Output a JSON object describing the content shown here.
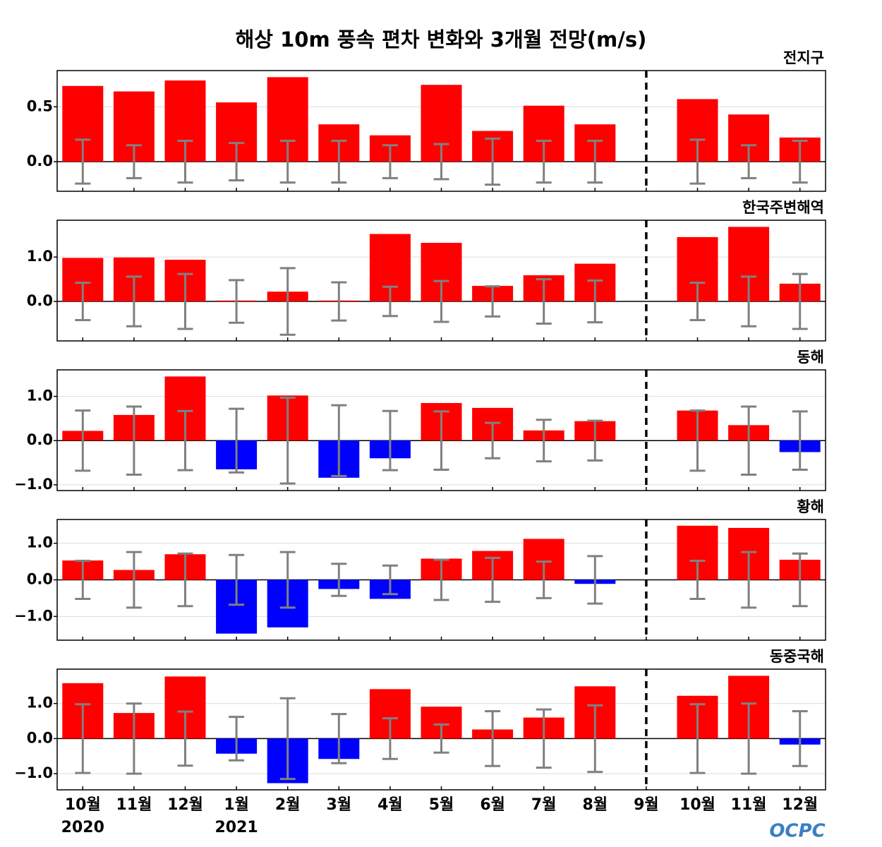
{
  "title": "해상 10m 풍속 편차 변화와 3개월 전망(m/s)",
  "categories": [
    "10월",
    "11월",
    "12월",
    "1월",
    "2월",
    "3월",
    "4월",
    "5월",
    "6월",
    "7월",
    "8월",
    "9월",
    "10월",
    "11월",
    "12월"
  ],
  "category_years": [
    "2020",
    null,
    null,
    "2021",
    null,
    null,
    null,
    null,
    null,
    null,
    null,
    null,
    null,
    null,
    null
  ],
  "divider": "9월",
  "logo": "OCPC",
  "chart_data": [
    {
      "type": "bar",
      "title": "전지구",
      "values": [
        0.69,
        0.64,
        0.74,
        0.54,
        0.77,
        0.34,
        0.24,
        0.7,
        0.28,
        0.51,
        0.34,
        null,
        0.57,
        0.43,
        0.22
      ],
      "errors": [
        0.2,
        0.15,
        0.19,
        0.17,
        0.19,
        0.19,
        0.15,
        0.16,
        0.21,
        0.19,
        0.19,
        null,
        0.2,
        0.15,
        0.19
      ],
      "ylim": [
        -0.27,
        0.83
      ],
      "yticks": [
        {
          "value": 0,
          "label": "0.0"
        },
        {
          "value": 0.5,
          "label": "0.5"
        }
      ],
      "colors": {
        "positive": "#ff0000",
        "negative": "#0000ff"
      },
      "error_color": "#808080",
      "grid": true
    },
    {
      "type": "bar",
      "title": "한국주변해역",
      "values": [
        0.98,
        0.99,
        0.94,
        0.02,
        0.22,
        0.02,
        1.52,
        1.32,
        0.35,
        0.59,
        0.85,
        null,
        1.45,
        1.68,
        0.4
      ],
      "errors": [
        0.42,
        0.56,
        0.62,
        0.48,
        0.75,
        0.43,
        0.33,
        0.46,
        0.34,
        0.5,
        0.47,
        null,
        0.42,
        0.56,
        0.62
      ],
      "ylim": [
        -0.89,
        1.83
      ],
      "yticks": [
        {
          "value": 0,
          "label": "0.0"
        },
        {
          "value": 1,
          "label": "1.0"
        }
      ],
      "colors": {
        "positive": "#ff0000",
        "negative": "#0000ff"
      },
      "error_color": "#808080",
      "grid": true
    },
    {
      "type": "bar",
      "title": "동해",
      "values": [
        0.22,
        0.58,
        1.45,
        -0.65,
        1.02,
        -0.84,
        -0.4,
        0.85,
        0.74,
        0.23,
        0.44,
        null,
        0.68,
        0.35,
        -0.26
      ],
      "errors": [
        0.68,
        0.77,
        0.67,
        0.72,
        0.97,
        0.8,
        0.67,
        0.66,
        0.4,
        0.47,
        0.45,
        null,
        0.68,
        0.77,
        0.66
      ],
      "ylim": [
        -1.13,
        1.6
      ],
      "yticks": [
        {
          "value": -1,
          "label": "−1.0"
        },
        {
          "value": 0,
          "label": "0.0"
        },
        {
          "value": 1,
          "label": "1.0"
        }
      ],
      "colors": {
        "positive": "#ff0000",
        "negative": "#0000ff"
      },
      "error_color": "#808080",
      "grid": true
    },
    {
      "type": "bar",
      "title": "황해",
      "values": [
        0.53,
        0.27,
        0.7,
        -1.47,
        -1.3,
        -0.25,
        -0.52,
        0.58,
        0.79,
        1.12,
        -0.11,
        null,
        1.48,
        1.42,
        0.55
      ],
      "errors": [
        0.52,
        0.76,
        0.72,
        0.68,
        0.76,
        0.44,
        0.39,
        0.55,
        0.6,
        0.5,
        0.65,
        null,
        0.52,
        0.76,
        0.72
      ],
      "ylim": [
        -1.65,
        1.65
      ],
      "yticks": [
        {
          "value": -1,
          "label": "−1.0"
        },
        {
          "value": 0,
          "label": "0.0"
        },
        {
          "value": 1,
          "label": "1.0"
        }
      ],
      "colors": {
        "positive": "#ff0000",
        "negative": "#0000ff"
      },
      "error_color": "#808080",
      "grid": true
    },
    {
      "type": "bar",
      "title": "동중국해",
      "values": [
        1.58,
        0.73,
        1.77,
        -0.43,
        -1.27,
        -0.58,
        1.41,
        0.91,
        0.26,
        0.6,
        1.49,
        null,
        1.22,
        1.79,
        -0.17
      ],
      "errors": [
        0.98,
        1.0,
        0.77,
        0.62,
        1.15,
        0.7,
        0.58,
        0.4,
        0.78,
        0.83,
        0.95,
        null,
        0.98,
        1.0,
        0.78
      ],
      "ylim": [
        -1.46,
        1.98
      ],
      "yticks": [
        {
          "value": -1,
          "label": "−1.0"
        },
        {
          "value": 0,
          "label": "0.0"
        },
        {
          "value": 1,
          "label": "1.0"
        }
      ],
      "colors": {
        "positive": "#ff0000",
        "negative": "#0000ff"
      },
      "error_color": "#808080",
      "grid": true
    }
  ]
}
